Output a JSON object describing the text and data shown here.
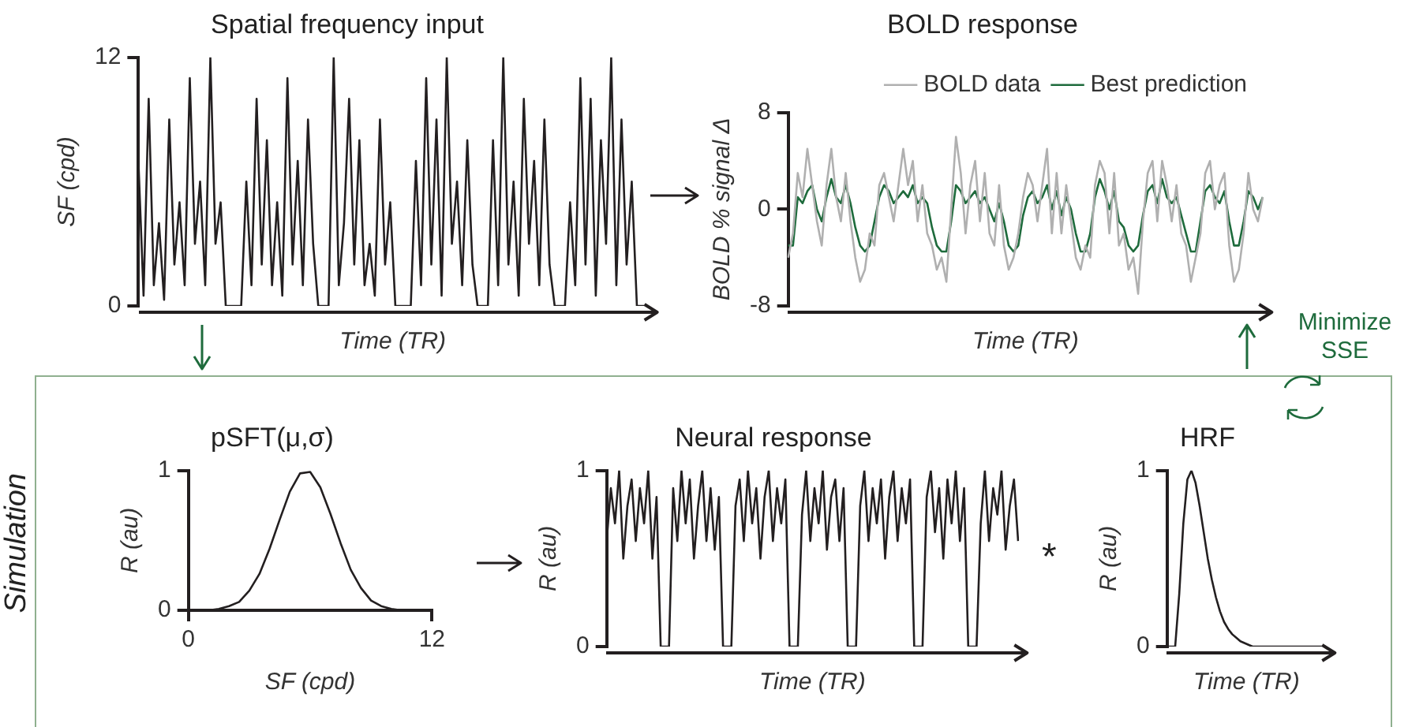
{
  "chart_data": [
    {
      "type": "line",
      "title": "Spatial frequency input",
      "xlabel": "Time (TR)",
      "ylabel": "SF (cpd)",
      "color": "#231f20",
      "ylim": [
        0,
        12
      ],
      "yticks": [
        0,
        12
      ],
      "categories": [
        null,
        null,
        null,
        null,
        null,
        null,
        null,
        null,
        null,
        null,
        null,
        null,
        null,
        null,
        null,
        null,
        null,
        null,
        null,
        null,
        null,
        null,
        null,
        null,
        null,
        null,
        null,
        null,
        null,
        null,
        null,
        null,
        null,
        null,
        null,
        null,
        null,
        null,
        null,
        null,
        null,
        null,
        null,
        null,
        null,
        null,
        null,
        null,
        null,
        null,
        null,
        null,
        null,
        null,
        null,
        null,
        null,
        null,
        null,
        null,
        null,
        null,
        null,
        null,
        null,
        null,
        null,
        null,
        null,
        null,
        null,
        null,
        null,
        null,
        null,
        null,
        null,
        null,
        null,
        null,
        null,
        null,
        null,
        null,
        null,
        null,
        null,
        null,
        null,
        null,
        null,
        null,
        null,
        null,
        null,
        null,
        null,
        null,
        null,
        null
      ],
      "values": [
        7,
        0.5,
        10,
        1,
        4,
        0.3,
        9,
        2,
        5,
        1,
        11,
        3,
        6,
        1,
        12,
        3,
        5,
        0,
        0,
        0,
        0,
        6,
        1,
        10,
        2,
        8,
        1,
        5,
        0.5,
        11,
        2,
        7,
        1,
        9,
        3,
        0,
        0,
        0,
        12,
        1,
        4,
        10,
        2,
        8,
        1,
        3,
        0.5,
        9,
        2,
        5,
        0,
        0,
        0,
        0,
        7,
        1,
        11,
        2,
        9,
        0.5,
        12,
        3,
        6,
        1,
        8,
        2,
        0,
        0,
        0,
        8,
        1,
        12,
        2,
        6,
        0.5,
        10,
        3,
        7,
        1,
        9,
        2,
        0,
        0,
        0,
        5,
        1,
        11,
        2,
        10,
        0.5,
        8,
        3,
        12,
        1,
        9,
        2,
        6,
        0,
        0,
        0
      ]
    },
    {
      "type": "line",
      "title": "BOLD response",
      "xlabel": "Time (TR)",
      "ylabel": "BOLD % signal Δ",
      "ylim": [
        -8,
        8
      ],
      "yticks": [
        -8,
        0,
        8
      ],
      "legend": "top right",
      "categories": [
        null,
        null,
        null,
        null,
        null,
        null,
        null,
        null,
        null,
        null,
        null,
        null,
        null,
        null,
        null,
        null,
        null,
        null,
        null,
        null,
        null,
        null,
        null,
        null,
        null,
        null,
        null,
        null,
        null,
        null,
        null,
        null,
        null,
        null,
        null,
        null,
        null,
        null,
        null,
        null,
        null,
        null,
        null,
        null,
        null,
        null,
        null,
        null,
        null,
        null,
        null,
        null,
        null,
        null,
        null,
        null,
        null,
        null,
        null,
        null,
        null,
        null,
        null,
        null,
        null,
        null,
        null,
        null,
        null,
        null,
        null,
        null,
        null,
        null,
        null,
        null,
        null,
        null,
        null,
        null,
        null,
        null,
        null,
        null,
        null,
        null,
        null,
        null,
        null,
        null,
        null,
        null,
        null,
        null,
        null,
        null,
        null,
        null,
        null,
        null
      ],
      "series": [
        {
          "name": "BOLD data",
          "color": "#b0b0b0",
          "values": [
            -4,
            -2,
            3,
            1,
            5,
            2,
            -1,
            -3,
            2,
            5,
            1,
            -1,
            3,
            -1,
            -4,
            -6,
            -5,
            -2,
            -3,
            2,
            3,
            1,
            -1,
            2,
            5,
            2,
            4,
            -1,
            2,
            -2,
            -3,
            -5,
            -4,
            -6,
            0,
            6,
            3,
            -2,
            2,
            4,
            -1,
            3,
            -2,
            -3,
            2,
            -3,
            -5,
            -4,
            -2,
            1,
            3,
            2,
            -1,
            2,
            5,
            -2,
            3,
            -2,
            2,
            -1,
            -4,
            -5,
            -3,
            -4,
            2,
            4,
            3,
            -2,
            3,
            -3,
            -2,
            -5,
            -4,
            -7,
            -1,
            3,
            4,
            -1,
            4,
            2,
            -1,
            2,
            -2,
            -3,
            -6,
            -4,
            -2,
            3,
            4,
            0,
            2,
            3,
            -3,
            -6,
            -5,
            -2,
            3,
            0,
            -1,
            1
          ]
        },
        {
          "name": "Best prediction",
          "color": "#1e6b3c",
          "values": [
            -3,
            -3,
            1,
            0.5,
            1.5,
            2,
            0,
            -1,
            1,
            2.5,
            1,
            0.5,
            2,
            0.5,
            -1.5,
            -3,
            -3.5,
            -3,
            -1,
            1,
            2,
            1.5,
            0.5,
            1,
            1.5,
            1,
            2,
            0.5,
            1,
            0.5,
            -1.5,
            -3,
            -3.5,
            -3.5,
            -1,
            2,
            1.5,
            0.5,
            1,
            1.5,
            0.5,
            1,
            0,
            -1,
            0.5,
            -1,
            -3,
            -3.5,
            -3,
            -0.5,
            1,
            1.5,
            0.5,
            1,
            2,
            0,
            1.5,
            -0.5,
            1,
            0,
            -2,
            -3.5,
            -3.5,
            -2,
            1,
            2.5,
            1.5,
            0,
            1.5,
            -1,
            -1.5,
            -3,
            -3.5,
            -3,
            -0.5,
            1.5,
            2,
            0.5,
            2.5,
            1,
            0.5,
            1,
            -0.5,
            -2,
            -3.5,
            -3.5,
            -1,
            1.5,
            2,
            1,
            0.5,
            1.5,
            -1,
            -3,
            -3,
            -1,
            1.5,
            1,
            0,
            1
          ]
        }
      ]
    },
    {
      "type": "line",
      "title": "pSFT(μ,σ)",
      "xlabel": "SF (cpd)",
      "ylabel": "R (au)",
      "color": "#231f20",
      "xlim": [
        0,
        12
      ],
      "xticks": [
        0,
        12
      ],
      "ylim": [
        0,
        1
      ],
      "yticks": [
        0,
        1
      ],
      "x": [
        0,
        0.5,
        1,
        1.5,
        2,
        2.5,
        3,
        3.5,
        4,
        4.5,
        5,
        5.5,
        6,
        6.5,
        7,
        7.5,
        8,
        8.5,
        9,
        9.5,
        10,
        10.5,
        11,
        11.5,
        12
      ],
      "values": [
        0,
        0,
        0,
        0.01,
        0.03,
        0.06,
        0.14,
        0.26,
        0.44,
        0.65,
        0.85,
        0.98,
        0.99,
        0.88,
        0.69,
        0.48,
        0.29,
        0.16,
        0.07,
        0.03,
        0.01,
        0,
        0,
        0,
        0
      ]
    },
    {
      "type": "line",
      "title": "Neural response",
      "xlabel": "Time (TR)",
      "ylabel": "R (au)",
      "color": "#231f20",
      "ylim": [
        0,
        1
      ],
      "yticks": [
        0,
        1
      ],
      "categories": [
        null,
        null,
        null,
        null,
        null,
        null,
        null,
        null,
        null,
        null,
        null,
        null,
        null,
        null,
        null,
        null,
        null,
        null,
        null,
        null,
        null,
        null,
        null,
        null,
        null,
        null,
        null,
        null,
        null,
        null,
        null,
        null,
        null,
        null,
        null,
        null,
        null,
        null,
        null,
        null,
        null,
        null,
        null,
        null,
        null,
        null,
        null,
        null,
        null,
        null,
        null,
        null,
        null,
        null,
        null,
        null,
        null,
        null,
        null,
        null,
        null,
        null,
        null,
        null,
        null,
        null,
        null,
        null,
        null,
        null,
        null,
        null,
        null,
        null,
        null,
        null,
        null,
        null,
        null,
        null,
        null,
        null,
        null,
        null,
        null,
        null,
        null,
        null,
        null,
        null,
        null,
        null,
        null,
        null,
        null,
        null,
        null,
        null,
        null,
        null
      ],
      "values": [
        0.6,
        0.9,
        0.7,
        1,
        0.5,
        0.8,
        0.95,
        0.6,
        0.9,
        0.7,
        1,
        0.5,
        0.85,
        0,
        0,
        0,
        0.9,
        0.6,
        1,
        0.7,
        0.95,
        0.5,
        0.8,
        1,
        0.6,
        0.9,
        0.55,
        0.85,
        0,
        0,
        0,
        0.8,
        0.95,
        0.6,
        1,
        0.7,
        0.9,
        0.5,
        0.85,
        1,
        0.6,
        0.9,
        0.7,
        0.95,
        0,
        0,
        0,
        0.75,
        1,
        0.6,
        0.9,
        0.7,
        1,
        0.55,
        0.85,
        0.95,
        0.6,
        0.9,
        0,
        0,
        0,
        0.8,
        1,
        0.6,
        0.9,
        0.7,
        0.95,
        0.5,
        0.85,
        1,
        0.6,
        0.9,
        0.7,
        0.95,
        0,
        0,
        0,
        0.85,
        1,
        0.65,
        0.9,
        0.5,
        0.95,
        0.7,
        1,
        0.6,
        0.9,
        0,
        0,
        0,
        0.7,
        1,
        0.6,
        0.9,
        0.75,
        1,
        0.55,
        0.8,
        0.95,
        0.6
      ]
    },
    {
      "type": "line",
      "title": "HRF",
      "xlabel": "Time (TR)",
      "ylabel": "R (au)",
      "color": "#231f20",
      "ylim": [
        0,
        1
      ],
      "yticks": [
        0,
        1
      ],
      "categories": [
        null,
        null,
        null,
        null,
        null,
        null,
        null,
        null,
        null,
        null,
        null,
        null,
        null,
        null,
        null,
        null,
        null,
        null,
        null,
        null,
        null,
        null,
        null,
        null,
        null,
        null,
        null,
        null,
        null,
        null,
        null,
        null,
        null,
        null,
        null,
        null,
        null,
        null,
        null,
        null
      ],
      "values": [
        0,
        0,
        0,
        0.3,
        0.7,
        0.95,
        1,
        0.93,
        0.8,
        0.65,
        0.5,
        0.38,
        0.28,
        0.2,
        0.14,
        0.1,
        0.07,
        0.05,
        0.03,
        0.02,
        0.01,
        0,
        0,
        0,
        0,
        0,
        0,
        0,
        0,
        0,
        0,
        0,
        0,
        0,
        0,
        0,
        0,
        0,
        0,
        0
      ]
    },
    {
      "type": "other",
      "annotations": [
        "Minimize SSE",
        "Simulation",
        "*"
      ]
    }
  ]
}
